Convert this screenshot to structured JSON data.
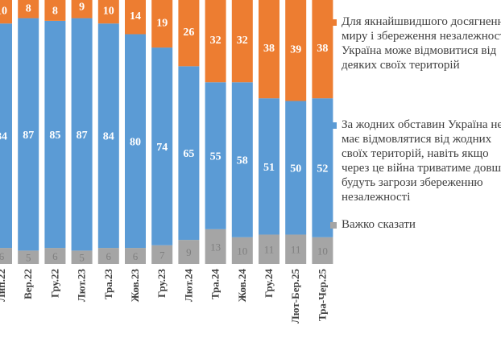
{
  "chart_data": {
    "type": "bar",
    "stacked": true,
    "normalized_to": 100,
    "categories": [
      "Лип.22",
      "Вер.22",
      "Гру.22",
      "Лют.23",
      "Тра.23",
      "Жов.23",
      "Гру.23",
      "Лют.24",
      "Тра.24",
      "Жов.24",
      "Гру.24",
      "Лют-Бер.25",
      "Тра-Чер.25"
    ],
    "series": [
      {
        "name": "Важко сказати",
        "color": "#a5a5a5",
        "values": [
          6,
          5,
          6,
          5,
          6,
          6,
          7,
          9,
          13,
          10,
          11,
          11,
          10
        ]
      },
      {
        "name": "За жодних обставин Україна не має відмовлятися від жодних своїх територій, навіть якщо через це війна триватиме довше і будуть загрози збереженню незалежності",
        "color": "#5b9bd5",
        "values": [
          84,
          87,
          85,
          87,
          84,
          80,
          74,
          65,
          55,
          58,
          51,
          50,
          52
        ]
      },
      {
        "name": "Для якнайшвидшого досягнення миру і збереження незалежності Україна може відмовитися від деяких своїх територій",
        "color": "#ed7d31",
        "values": [
          10,
          8,
          8,
          9,
          10,
          14,
          19,
          26,
          32,
          32,
          38,
          39,
          38
        ]
      }
    ],
    "legend_position": "right",
    "legend": [
      {
        "label": "Для якнайшвидшого досягнення\nмиру і збереження незалежності\nУкраїна може відмовитися від\nдеяких своїх територій",
        "color": "#ed7d31"
      },
      {
        "label": "За жодних обставин Україна не\nмає відмовлятися від жодних\nсвоїх територій, навіть якщо\nчерез це війна триватиме довше і\nбудуть загрози збереженню\nнезалежності",
        "color": "#5b9bd5"
      },
      {
        "label": "Важко сказати",
        "color": "#a5a5a5"
      }
    ]
  }
}
